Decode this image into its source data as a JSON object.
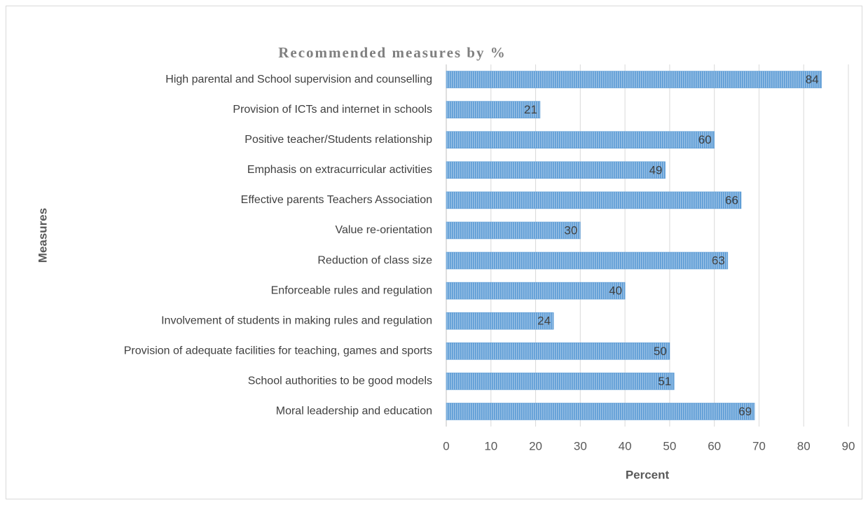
{
  "chart_data": {
    "type": "bar",
    "orientation": "horizontal",
    "title": "Recommended measures by %",
    "x_label": "Percent",
    "y_label": "Measures",
    "categories": [
      "High parental and School supervision and counselling",
      "Provision of ICTs and internet in schools",
      "Positive teacher/Students relationship",
      "Emphasis on extracurricular activities",
      "Effective parents Teachers Association",
      "Value re-orientation",
      "Reduction of class size",
      "Enforceable rules and regulation",
      "Involvement of students in making rules and regulation",
      "Provision of adequate facilities for teaching, games and sports",
      "School authorities to be good models",
      "Moral leadership and education"
    ],
    "values": [
      84,
      21,
      60,
      49,
      66,
      30,
      63,
      40,
      24,
      50,
      51,
      69
    ],
    "color": "#5b9bd5",
    "xlim": [
      0,
      90
    ],
    "xticks": [
      0,
      10,
      20,
      30,
      40,
      50,
      60,
      70,
      80,
      90
    ],
    "grid": true
  }
}
